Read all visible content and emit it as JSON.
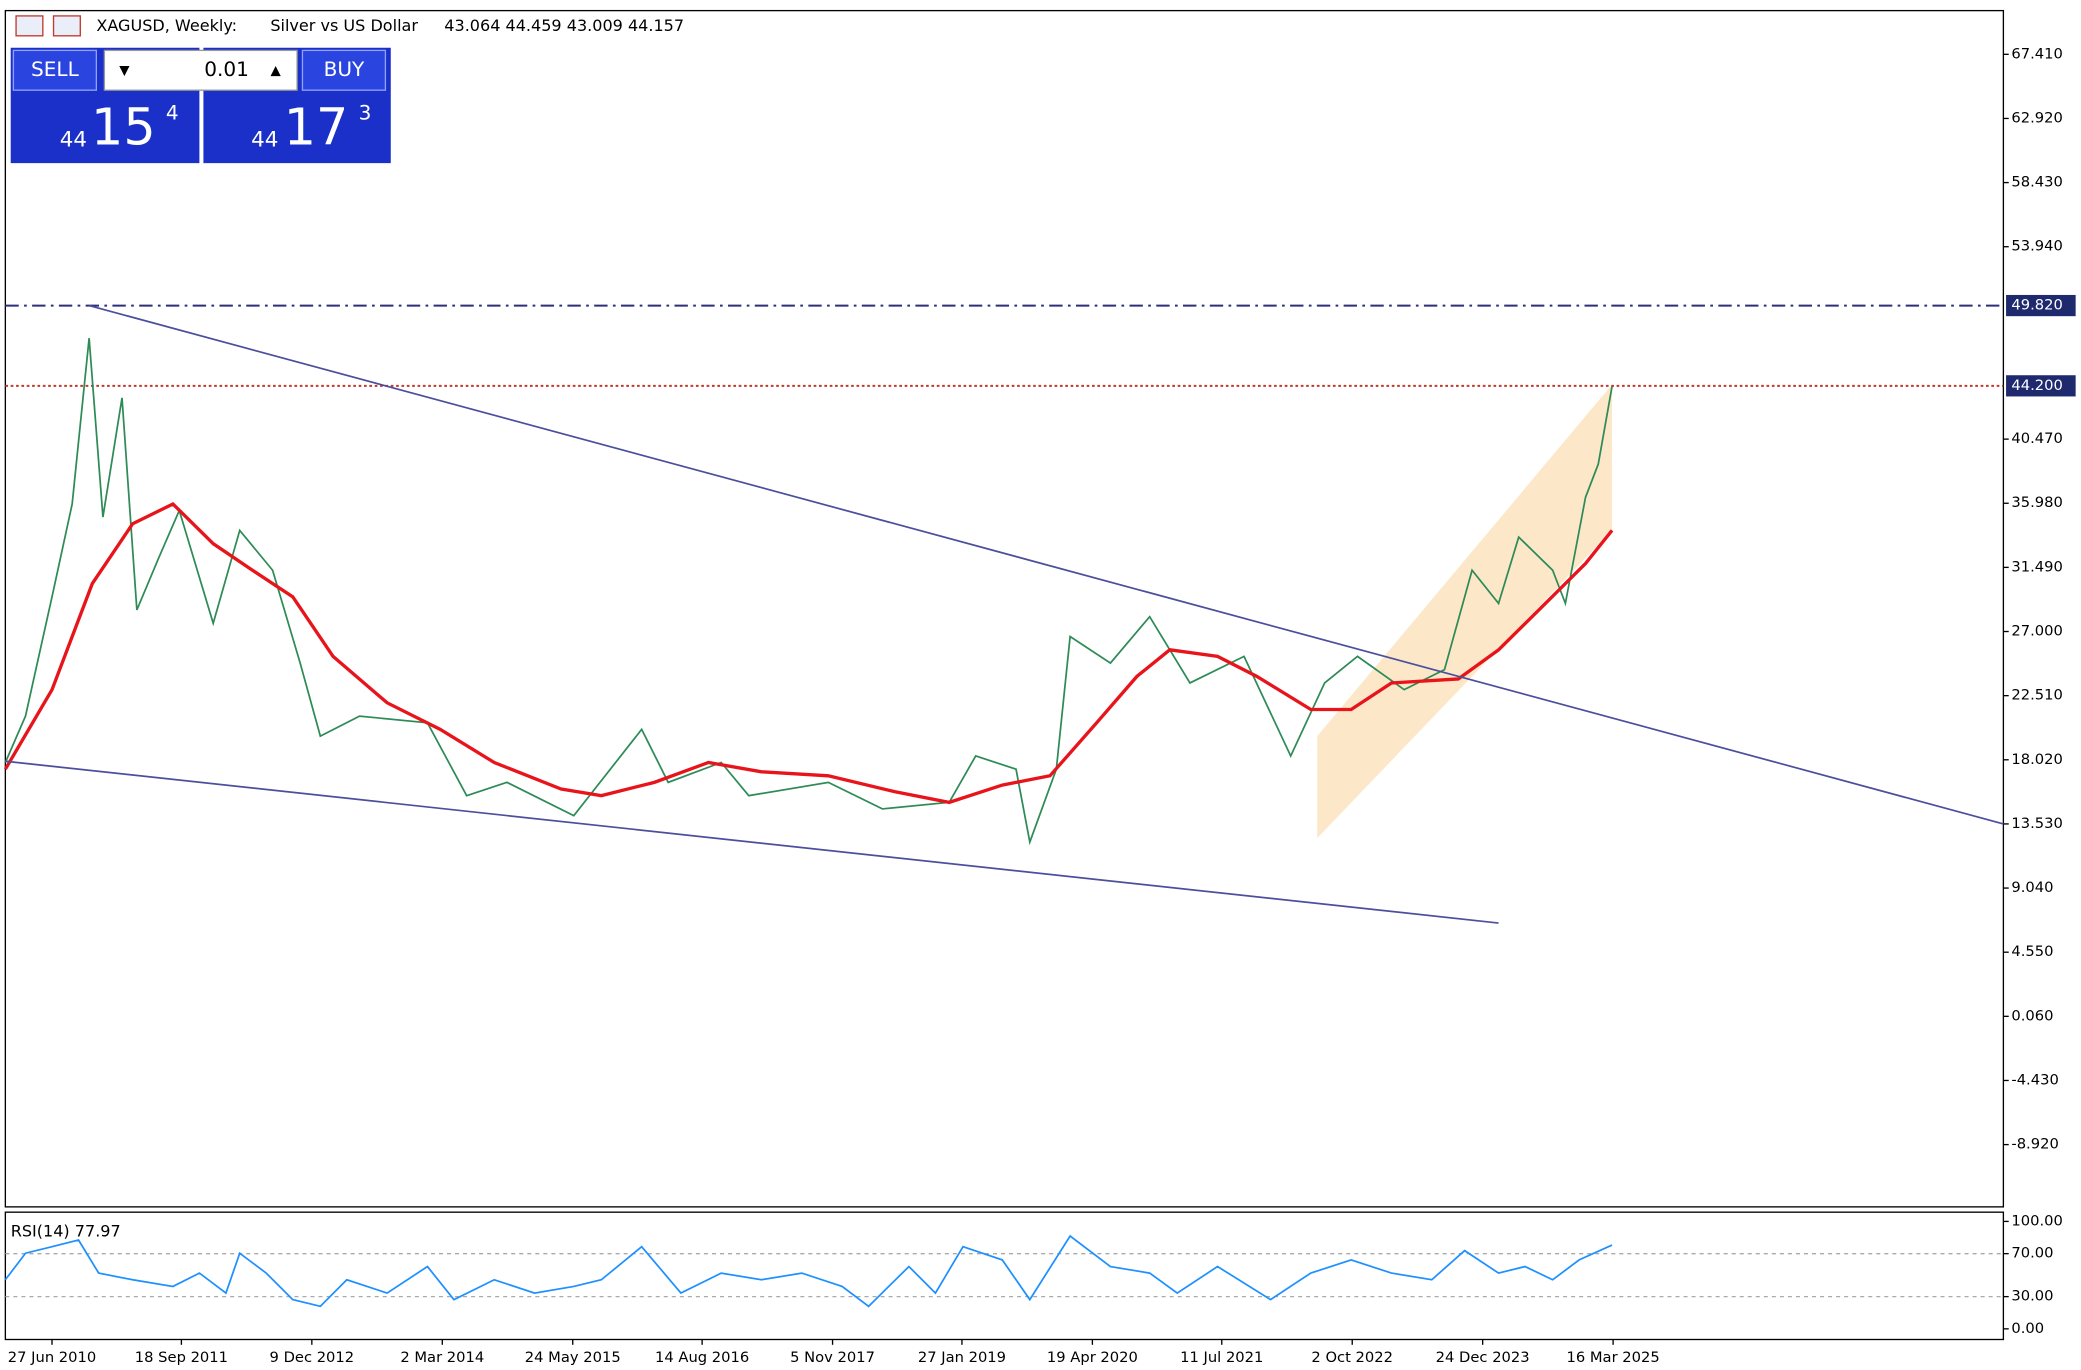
{
  "header": {
    "symbol": "XAGUSD, Weekly:",
    "description": "Silver vs US Dollar",
    "ohlc": "43.064 44.459 43.009 44.157"
  },
  "trade_panel": {
    "sell": "SELL",
    "buy": "BUY",
    "volume": "0.01",
    "sell_price": {
      "big": "44",
      "main": "15",
      "small": "4"
    },
    "buy_price": {
      "big": "44",
      "main": "17",
      "small": "3"
    }
  },
  "chart_data": [
    {
      "type": "line",
      "xlim": [
        2010.05,
        2028.89
      ],
      "ylim": [
        70.47,
        -13.28
      ],
      "xticks": [
        {
          "value": 2010.49,
          "label": "27 Jun 2010"
        },
        {
          "value": 2011.71,
          "label": "18 Sep 2011"
        },
        {
          "value": 2012.94,
          "label": "9 Dec 2012"
        },
        {
          "value": 2014.17,
          "label": "2 Mar 2014"
        },
        {
          "value": 2015.4,
          "label": "24 May 2015"
        },
        {
          "value": 2016.62,
          "label": "14 Aug 2016"
        },
        {
          "value": 2017.85,
          "label": "5 Nov 2017"
        },
        {
          "value": 2019.07,
          "label": "27 Jan 2019"
        },
        {
          "value": 2020.3,
          "label": "19 Apr 2020"
        },
        {
          "value": 2021.52,
          "label": "11 Jul 2021"
        },
        {
          "value": 2022.75,
          "label": "2 Oct 2022"
        },
        {
          "value": 2023.98,
          "label": "24 Dec 2023"
        },
        {
          "value": 2025.21,
          "label": "16 Mar 2025"
        }
      ],
      "yticks": [
        {
          "value": 67.41,
          "label": "67.410"
        },
        {
          "value": 62.92,
          "label": "62.920"
        },
        {
          "value": 58.43,
          "label": "58.430"
        },
        {
          "value": 53.94,
          "label": "53.940"
        },
        {
          "value": 40.47,
          "label": "40.470"
        },
        {
          "value": 35.98,
          "label": "35.980"
        },
        {
          "value": 31.49,
          "label": "31.490"
        },
        {
          "value": 27,
          "label": "27.000"
        },
        {
          "value": 22.51,
          "label": "22.510"
        },
        {
          "value": 18.02,
          "label": "18.020"
        },
        {
          "value": 13.53,
          "label": "13.530"
        },
        {
          "value": 9.04,
          "label": "9.040"
        },
        {
          "value": 4.55,
          "label": "4.550"
        },
        {
          "value": 0.06,
          "label": "0.060"
        },
        {
          "value": -4.43,
          "label": "-4.430"
        },
        {
          "value": -8.92,
          "label": "-8.920"
        }
      ],
      "series": [
        {
          "color": "#2e8b57",
          "x": [
            2010.05,
            2010.24,
            2010.49,
            2010.68,
            2010.84,
            2010.97,
            2011.15,
            2011.29,
            2011.5,
            2011.69,
            2012.01,
            2012.26,
            2012.57,
            2012.83,
            2013.02,
            2013.39,
            2014.03,
            2014.4,
            2014.78,
            2015.41,
            2016.05,
            2016.3,
            2016.8,
            2017.06,
            2017.81,
            2018.32,
            2018.95,
            2019.2,
            2019.58,
            2019.71,
            2019.96,
            2020.09,
            2020.47,
            2020.84,
            2021.22,
            2021.73,
            2022.17,
            2022.49,
            2022.8,
            2023.24,
            2023.62,
            2023.88,
            2024.13,
            2024.32,
            2024.64,
            2024.76,
            2024.95,
            2025.07,
            2025.2
          ],
          "values": [
            17.83,
            21.08,
            29.43,
            35.93,
            47.54,
            35.01,
            43.36,
            28.51,
            32.22,
            35.47,
            27.58,
            34.08,
            31.29,
            24.79,
            19.68,
            21.08,
            20.61,
            15.51,
            16.44,
            14.11,
            20.15,
            16.44,
            17.83,
            15.51,
            16.44,
            14.58,
            15.04,
            18.29,
            17.36,
            12.26,
            17.36,
            26.65,
            24.79,
            28.04,
            23.4,
            25.26,
            18.29,
            23.4,
            25.26,
            22.93,
            24.33,
            31.29,
            28.97,
            33.61,
            31.29,
            28.97,
            36.4,
            38.72,
            44.157
          ]
        },
        {
          "color": "#e8141b",
          "x": [
            2010.05,
            2010.49,
            2010.87,
            2011.25,
            2011.63,
            2012.01,
            2012.38,
            2012.76,
            2013.14,
            2013.65,
            2014.15,
            2014.66,
            2015.29,
            2015.67,
            2016.17,
            2016.68,
            2017.18,
            2017.81,
            2018.44,
            2018.95,
            2019.45,
            2019.9,
            2020.34,
            2020.72,
            2021.03,
            2021.48,
            2021.85,
            2022.36,
            2022.74,
            2023.12,
            2023.75,
            2024.13,
            2024.51,
            2024.95,
            2025.2
          ],
          "values": [
            17.36,
            22.93,
            30.36,
            34.54,
            35.93,
            33.15,
            31.29,
            29.43,
            25.26,
            22.01,
            20.15,
            17.83,
            15.97,
            15.51,
            16.44,
            17.83,
            17.18,
            16.9,
            15.78,
            15.04,
            16.25,
            16.9,
            20.61,
            23.86,
            25.72,
            25.26,
            23.86,
            21.54,
            21.54,
            23.4,
            23.68,
            25.72,
            28.51,
            31.76,
            34.08
          ]
        },
        {
          "color": "#4b4f9c",
          "x": [
            2010.84,
            2028.89
          ],
          "values": [
            49.82,
            13.53
          ]
        },
        {
          "color": "#4b4f9c",
          "x": [
            2010.05,
            2024.13
          ],
          "values": [
            17.92,
            6.59
          ]
        }
      ],
      "channel": {
        "color": "#fde3bf",
        "x": [
          2022.42,
          2025.2
        ],
        "upper": [
          19.68,
          44.29
        ],
        "lower": [
          12.54,
          34.08
        ]
      },
      "hlines": [
        {
          "value": 49.82,
          "label": "49.820",
          "color": "#2c2f7a",
          "dash": "10 4 2 4"
        },
        {
          "value": 44.2,
          "label": "44.200",
          "color": "#c0392b",
          "dash": "2 2"
        }
      ]
    },
    {
      "type": "line",
      "title": "RSI(14) 77.97",
      "ylim": [
        108.6,
        -9.9
      ],
      "yticks": [
        {
          "value": 100,
          "label": "100.00"
        },
        {
          "value": 70,
          "label": "70.00"
        },
        {
          "value": 30,
          "label": "30.00"
        },
        {
          "value": 0,
          "label": "0.00"
        }
      ],
      "levels": [
        70,
        30
      ],
      "series": [
        {
          "color": "#1e90ff",
          "x": [
            2010.05,
            2010.24,
            2010.49,
            2010.74,
            2010.93,
            2011.25,
            2011.63,
            2011.88,
            2012.13,
            2012.26,
            2012.51,
            2012.76,
            2013.02,
            2013.27,
            2013.65,
            2014.03,
            2014.28,
            2014.66,
            2015.04,
            2015.41,
            2015.67,
            2016.05,
            2016.42,
            2016.8,
            2017.18,
            2017.56,
            2017.94,
            2018.19,
            2018.57,
            2018.82,
            2019.08,
            2019.45,
            2019.71,
            2020.09,
            2020.47,
            2020.84,
            2021.1,
            2021.48,
            2021.98,
            2022.36,
            2022.74,
            2023.12,
            2023.5,
            2023.81,
            2024.13,
            2024.38,
            2024.64,
            2024.89,
            2025.2
          ],
          "values": [
            45.7,
            70.4,
            76.5,
            82.7,
            51.9,
            45.7,
            39.5,
            51.9,
            33.3,
            70.4,
            51.9,
            27.2,
            21,
            45.7,
            33.3,
            58,
            27.2,
            45.7,
            33.3,
            39.5,
            45.7,
            76.5,
            33.3,
            51.9,
            45.7,
            51.9,
            39.5,
            21,
            58,
            33.3,
            76.5,
            64.2,
            27.2,
            86.4,
            58,
            51.9,
            33.3,
            58,
            27.2,
            51.9,
            64.2,
            51.9,
            45.7,
            72.8,
            51.9,
            58,
            45.7,
            64.2,
            77.97
          ]
        }
      ]
    }
  ]
}
